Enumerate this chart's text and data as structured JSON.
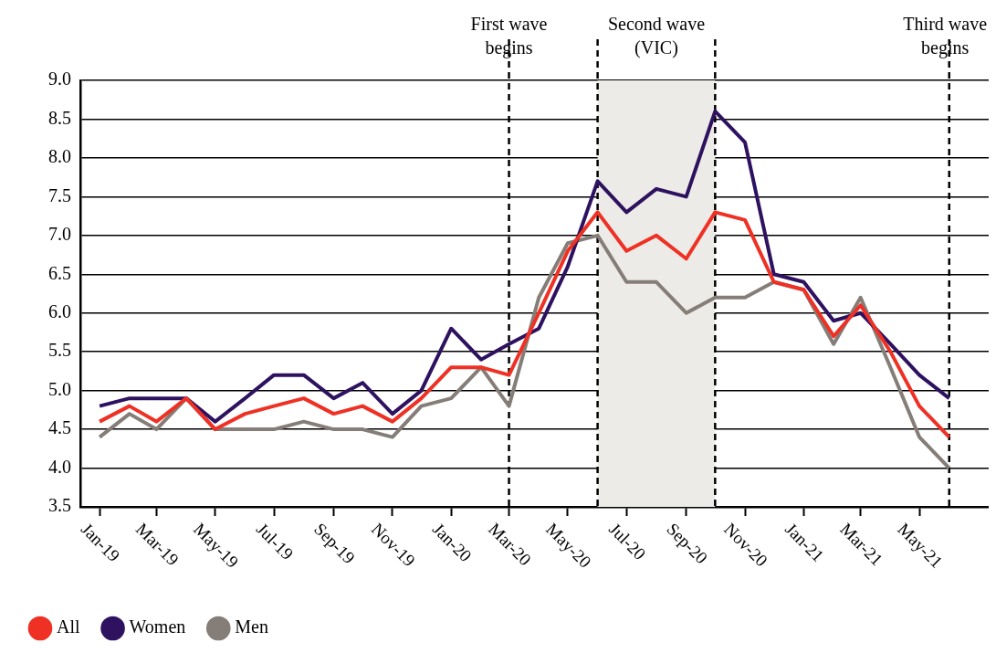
{
  "chart_data": {
    "type": "line",
    "x": [
      "2019-01",
      "2019-02",
      "2019-03",
      "2019-04",
      "2019-05",
      "2019-06",
      "2019-07",
      "2019-08",
      "2019-09",
      "2019-10",
      "2019-11",
      "2019-12",
      "2020-01",
      "2020-02",
      "2020-03",
      "2020-04",
      "2020-05",
      "2020-06",
      "2020-07",
      "2020-08",
      "2020-09",
      "2020-10",
      "2020-11",
      "2020-12",
      "2021-01",
      "2021-02",
      "2021-03",
      "2021-04",
      "2021-05",
      "2021-06"
    ],
    "series": [
      {
        "name": "All",
        "color": "#ee3124",
        "values": [
          4.6,
          4.8,
          4.6,
          4.9,
          4.5,
          4.7,
          4.8,
          4.9,
          4.7,
          4.8,
          4.6,
          4.9,
          5.3,
          5.3,
          5.2,
          6.0,
          6.8,
          7.3,
          6.8,
          7.0,
          6.7,
          7.3,
          7.2,
          6.4,
          6.3,
          5.7,
          6.1,
          5.5,
          4.8,
          4.4
        ]
      },
      {
        "name": "Women",
        "color": "#2e1260",
        "values": [
          4.8,
          4.9,
          4.9,
          4.9,
          4.6,
          4.9,
          5.2,
          5.2,
          4.9,
          5.1,
          4.7,
          5.0,
          5.8,
          5.4,
          5.6,
          5.8,
          6.6,
          7.7,
          7.3,
          7.6,
          7.5,
          8.6,
          8.2,
          6.5,
          6.4,
          5.9,
          6.0,
          5.6,
          5.2,
          4.9
        ]
      },
      {
        "name": "Men",
        "color": "#857d77",
        "values": [
          4.4,
          4.7,
          4.5,
          4.9,
          4.5,
          4.5,
          4.5,
          4.6,
          4.5,
          4.5,
          4.4,
          4.8,
          4.9,
          5.3,
          4.8,
          6.2,
          6.9,
          7.0,
          6.4,
          6.4,
          6.0,
          6.2,
          6.2,
          6.4,
          6.3,
          5.6,
          6.2,
          5.3,
          4.4,
          4.0
        ]
      }
    ],
    "xlim": [
      "2018-12-12",
      "2021-07-12"
    ],
    "xticks": [
      {
        "value": "2019-01",
        "label": "Jan-19"
      },
      {
        "value": "2019-03",
        "label": "Mar-19"
      },
      {
        "value": "2019-05",
        "label": "May-19"
      },
      {
        "value": "2019-07",
        "label": "Jul-19"
      },
      {
        "value": "2019-09",
        "label": "Sep-19"
      },
      {
        "value": "2019-11",
        "label": "Nov-19"
      },
      {
        "value": "2020-01",
        "label": "Jan-20"
      },
      {
        "value": "2020-03",
        "label": "Mar-20"
      },
      {
        "value": "2020-05",
        "label": "May-20"
      },
      {
        "value": "2020-07",
        "label": "Jul-20"
      },
      {
        "value": "2020-09",
        "label": "Sep-20"
      },
      {
        "value": "2020-11",
        "label": "Nov-20"
      },
      {
        "value": "2021-01",
        "label": "Jan-21"
      },
      {
        "value": "2021-03",
        "label": "Mar-21"
      },
      {
        "value": "2021-05",
        "label": "May-21"
      }
    ],
    "ylim": [
      3.5,
      9.0
    ],
    "yticks": [
      {
        "value": 3.5,
        "label": "3.5"
      },
      {
        "value": 4,
        "label": "4.0"
      },
      {
        "value": 4.5,
        "label": "4.5"
      },
      {
        "value": 5,
        "label": "5.0"
      },
      {
        "value": 5.5,
        "label": "5.5"
      },
      {
        "value": 6,
        "label": "6.0"
      },
      {
        "value": 6.5,
        "label": "6.5"
      },
      {
        "value": 7,
        "label": "7.0"
      },
      {
        "value": 7.5,
        "label": "7.5"
      },
      {
        "value": 8,
        "label": "8.0"
      },
      {
        "value": 8.5,
        "label": "8.5"
      },
      {
        "value": 9,
        "label": "9.0"
      }
    ],
    "ref_lines": [
      {
        "axis": "x",
        "value": "2020-03",
        "label": "First wave begins",
        "color": "#000000",
        "line_style": "dashed"
      },
      {
        "axis": "x",
        "value": "2020-06",
        "color": "#000000",
        "line_style": "dashed"
      },
      {
        "axis": "x",
        "value": "2020-10",
        "color": "#000000",
        "line_style": "dashed"
      },
      {
        "axis": "x",
        "value": "2021-06",
        "label": "Third wave begins",
        "color": "#000000",
        "line_style": "dashed"
      }
    ],
    "bands": [
      {
        "axis": "x",
        "from": "2020-06",
        "to": "2020-10",
        "label": "Second wave (VIC)",
        "color": "#ecebe7"
      }
    ],
    "grid": "y",
    "legend": "bottom left",
    "marker": "none",
    "line_style": "solid"
  }
}
